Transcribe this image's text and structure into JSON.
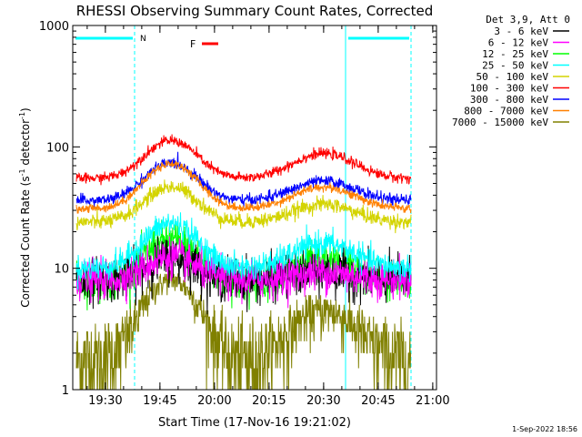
{
  "chart_data": {
    "type": "line",
    "title": "RHESSI Observing Summary Count Rates, Corrected",
    "xlabel": "Start Time (17-Nov-16 19:21:02)",
    "ylabel_main": "Corrected Count Rate (s",
    "ylabel_sup1": "-1",
    "ylabel_mid": " detector",
    "ylabel_sup2": "-1",
    "ylabel_end": ")",
    "y_scale": "log",
    "ylim": [
      1,
      1000
    ],
    "xlim_minutes": [
      0,
      100
    ],
    "x_tick_labels": [
      "19:30",
      "19:45",
      "20:00",
      "20:15",
      "20:30",
      "20:45",
      "21:00"
    ],
    "x_tick_minutes": [
      8.97,
      23.97,
      38.97,
      53.97,
      68.97,
      83.97,
      98.97
    ],
    "y_tick_labels": [
      "1",
      "10",
      "100",
      "1000"
    ],
    "y_tick_values": [
      1,
      10,
      100,
      1000
    ],
    "legend_header": "Det 3,9, Att 0",
    "attenuator_flag": "F",
    "night_flag": "N",
    "footer_date": "1-Sep-2022 18:56",
    "night_intervals_minutes": [
      [
        0,
        17
      ],
      [
        75,
        93
      ]
    ],
    "series": [
      {
        "name": "3 - 6 keV",
        "color": "#000000",
        "base": 8,
        "peak1": 1.5,
        "peak2": 1.15,
        "noise": 0.35
      },
      {
        "name": "6 - 12 keV",
        "color": "#ff00ff",
        "base": 8,
        "peak1": 1.55,
        "peak2": 1.15,
        "noise": 0.3
      },
      {
        "name": "12 - 25 keV",
        "color": "#00ff00",
        "base": 7.5,
        "peak1": 2.3,
        "peak2": 1.55,
        "noise": 0.3
      },
      {
        "name": "25 - 50 keV",
        "color": "#00ffff",
        "base": 10,
        "peak1": 2.35,
        "peak2": 1.6,
        "noise": 0.2
      },
      {
        "name": "50 - 100 keV",
        "color": "#d4d400",
        "base": 24,
        "peak1": 1.95,
        "peak2": 1.4,
        "noise": 0.12
      },
      {
        "name": "100 - 300 keV",
        "color": "#ff0000",
        "base": 55,
        "peak1": 2.05,
        "peak2": 1.6,
        "noise": 0.08
      },
      {
        "name": "300 - 800 keV",
        "color": "#0000ff",
        "base": 36,
        "peak1": 2.05,
        "peak2": 1.45,
        "noise": 0.09
      },
      {
        "name": "800 - 7000 keV",
        "color": "#ff8000",
        "base": 31,
        "peak1": 2.35,
        "peak2": 1.5,
        "noise": 0.07
      },
      {
        "name": "7000 - 15000 keV",
        "color": "#808000",
        "base": 1.8,
        "peak1": 4.5,
        "peak2": 2.5,
        "noise": 0.5
      }
    ]
  }
}
